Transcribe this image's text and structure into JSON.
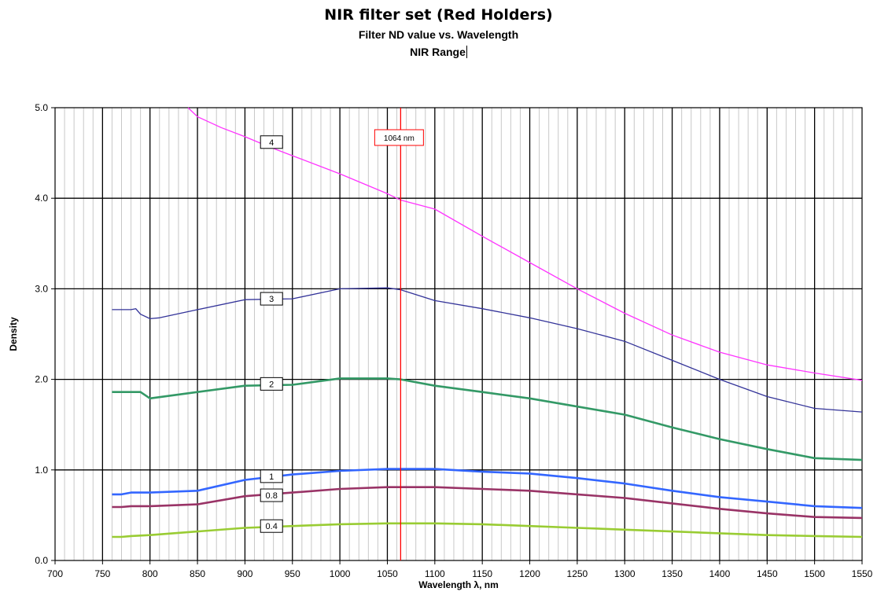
{
  "titles": {
    "title": "NIR filter set (Red Holders)",
    "subtitle": "Filter ND value vs. Wavelength",
    "subtitle2": "NIR Range"
  },
  "colors": {
    "od4": "#ff33ff",
    "od3": "#333399",
    "od2": "#339966",
    "od1": "#3366ff",
    "od08": "#993366",
    "od04": "#99cc33",
    "marker": "#ff0000"
  },
  "chart_data": {
    "type": "line",
    "xlabel": "Wavelength λ, nm",
    "ylabel": "Density",
    "xlim": [
      700,
      1550
    ],
    "ylim": [
      0,
      5
    ],
    "xticks": [
      "700",
      "750",
      "800",
      "850",
      "900",
      "950",
      "1000",
      "1050",
      "1100",
      "1150",
      "1200",
      "1250",
      "1300",
      "1350",
      "1400",
      "1450",
      "1500",
      "1550"
    ],
    "yticks": [
      "0.0",
      "1.0",
      "2.0",
      "3.0",
      "4.0",
      "5.0"
    ],
    "grid": "major and minor",
    "marker_line": {
      "x": 1064,
      "label": "1064 nm"
    },
    "series": [
      {
        "name": "4",
        "color_key": "od4",
        "x": [
          840,
          850,
          875,
          900,
          925,
          950,
          1000,
          1050,
          1064,
          1100,
          1150,
          1200,
          1250,
          1300,
          1350,
          1400,
          1450,
          1500,
          1550
        ],
        "y": [
          5.0,
          4.9,
          4.78,
          4.68,
          4.57,
          4.47,
          4.27,
          4.05,
          3.98,
          3.88,
          3.58,
          3.29,
          3.0,
          2.73,
          2.49,
          2.3,
          2.16,
          2.07,
          1.99
        ]
      },
      {
        "name": "3",
        "color_key": "od3",
        "x": [
          760,
          770,
          780,
          785,
          790,
          800,
          810,
          850,
          900,
          950,
          1000,
          1050,
          1064,
          1100,
          1150,
          1200,
          1250,
          1300,
          1350,
          1400,
          1450,
          1500,
          1550
        ],
        "y": [
          2.77,
          2.77,
          2.77,
          2.78,
          2.72,
          2.67,
          2.68,
          2.77,
          2.88,
          2.89,
          3.0,
          3.01,
          2.99,
          2.87,
          2.78,
          2.68,
          2.56,
          2.42,
          2.21,
          2.0,
          1.81,
          1.68,
          1.64
        ]
      },
      {
        "name": "2",
        "color_key": "od2",
        "x": [
          760,
          770,
          780,
          790,
          800,
          850,
          900,
          950,
          1000,
          1050,
          1064,
          1100,
          1150,
          1200,
          1250,
          1300,
          1350,
          1400,
          1450,
          1500,
          1550
        ],
        "y": [
          1.86,
          1.86,
          1.86,
          1.86,
          1.79,
          1.86,
          1.93,
          1.94,
          2.01,
          2.01,
          2.0,
          1.93,
          1.86,
          1.79,
          1.7,
          1.61,
          1.47,
          1.34,
          1.23,
          1.13,
          1.11
        ]
      },
      {
        "name": "1",
        "color_key": "od1",
        "x": [
          760,
          770,
          780,
          800,
          850,
          900,
          950,
          1000,
          1050,
          1064,
          1100,
          1150,
          1200,
          1250,
          1300,
          1350,
          1400,
          1450,
          1500,
          1550
        ],
        "y": [
          0.73,
          0.73,
          0.75,
          0.75,
          0.77,
          0.89,
          0.95,
          0.99,
          1.01,
          1.01,
          1.01,
          0.98,
          0.96,
          0.91,
          0.85,
          0.77,
          0.7,
          0.65,
          0.6,
          0.58
        ]
      },
      {
        "name": "0.8",
        "color_key": "od08",
        "x": [
          760,
          770,
          780,
          800,
          850,
          900,
          950,
          1000,
          1050,
          1064,
          1100,
          1150,
          1200,
          1250,
          1300,
          1350,
          1400,
          1450,
          1500,
          1550
        ],
        "y": [
          0.59,
          0.59,
          0.6,
          0.6,
          0.62,
          0.71,
          0.75,
          0.79,
          0.81,
          0.81,
          0.81,
          0.79,
          0.77,
          0.73,
          0.69,
          0.63,
          0.57,
          0.52,
          0.48,
          0.47
        ]
      },
      {
        "name": "0.4",
        "color_key": "od04",
        "x": [
          760,
          770,
          780,
          800,
          850,
          900,
          950,
          1000,
          1050,
          1064,
          1100,
          1150,
          1200,
          1250,
          1300,
          1350,
          1400,
          1450,
          1500,
          1550
        ],
        "y": [
          0.26,
          0.26,
          0.27,
          0.28,
          0.32,
          0.36,
          0.38,
          0.4,
          0.41,
          0.41,
          0.41,
          0.4,
          0.38,
          0.36,
          0.34,
          0.32,
          0.3,
          0.28,
          0.27,
          0.26
        ]
      }
    ],
    "series_labels": [
      {
        "text": "4",
        "x": 928,
        "y": 4.62
      },
      {
        "text": "3",
        "x": 928,
        "y": 2.89
      },
      {
        "text": "2",
        "x": 928,
        "y": 1.95
      },
      {
        "text": "1",
        "x": 928,
        "y": 0.93
      },
      {
        "text": "0.8",
        "x": 928,
        "y": 0.72
      },
      {
        "text": "0.4",
        "x": 928,
        "y": 0.38
      }
    ]
  }
}
